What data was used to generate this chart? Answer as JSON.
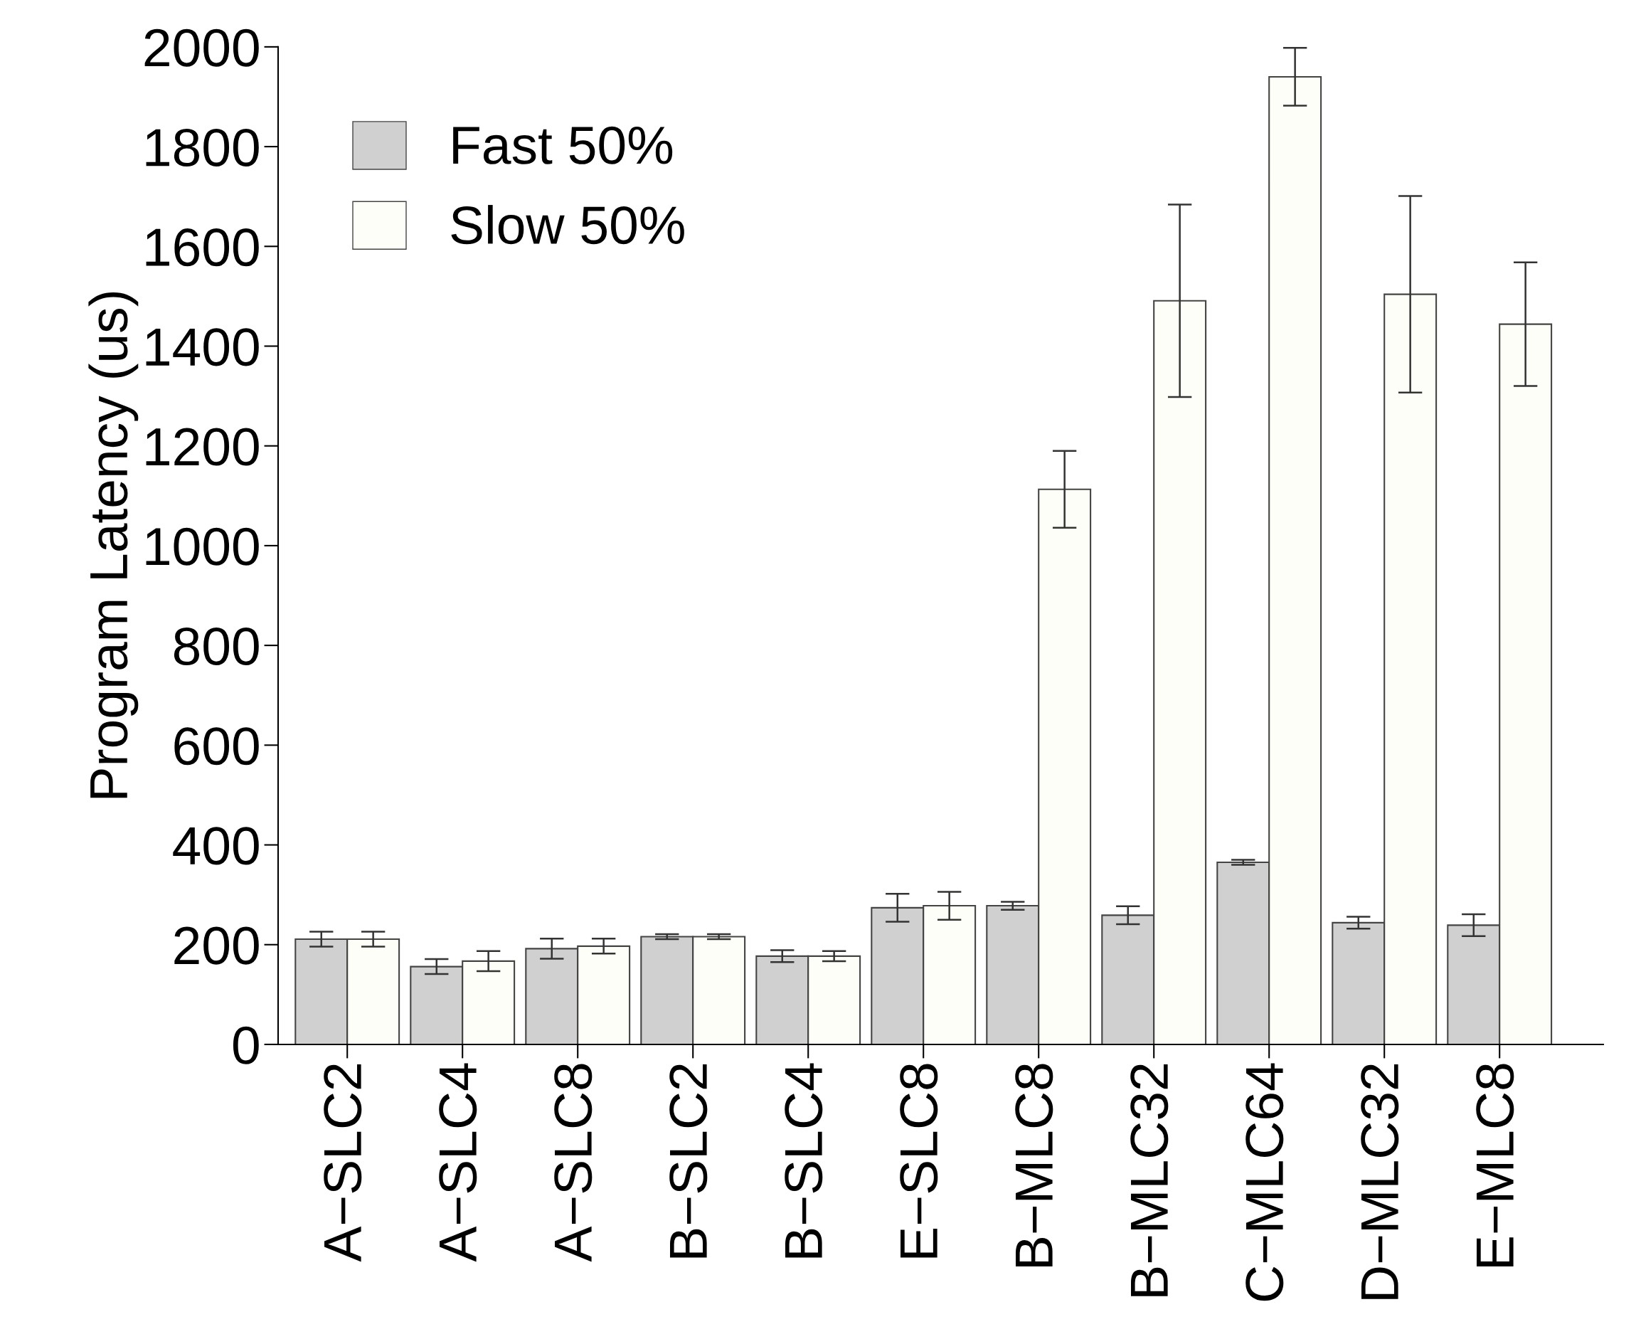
{
  "chart_data": {
    "type": "bar",
    "ylabel": "Program Latency (us)",
    "categories": [
      "A−SLC2",
      "A−SLC4",
      "A−SLC8",
      "B−SLC2",
      "B−SLC4",
      "E−SLC8",
      "B−MLC8",
      "B−MLC32",
      "C−MLC64",
      "D−MLC32",
      "E−MLC8"
    ],
    "series": [
      {
        "name": "Fast 50%",
        "color": "#d0d0d0",
        "values": [
          211,
          156,
          192,
          216,
          177,
          274,
          278,
          259,
          365,
          244,
          239
        ],
        "errors": [
          15,
          15,
          20,
          5,
          12,
          28,
          8,
          18,
          5,
          12,
          22
        ]
      },
      {
        "name": "Slow 50%",
        "color": "#fefef8",
        "values": [
          211,
          167,
          197,
          216,
          177,
          278,
          1113,
          1491,
          1940,
          1504,
          1444
        ],
        "errors": [
          15,
          20,
          15,
          5,
          10,
          28,
          77,
          193,
          58,
          197,
          124
        ]
      }
    ],
    "ylim": [
      0,
      2000
    ],
    "yticks": [
      0,
      200,
      400,
      600,
      800,
      1000,
      1200,
      1400,
      1600,
      1800,
      2000
    ],
    "grid": false,
    "legend": "top left"
  }
}
